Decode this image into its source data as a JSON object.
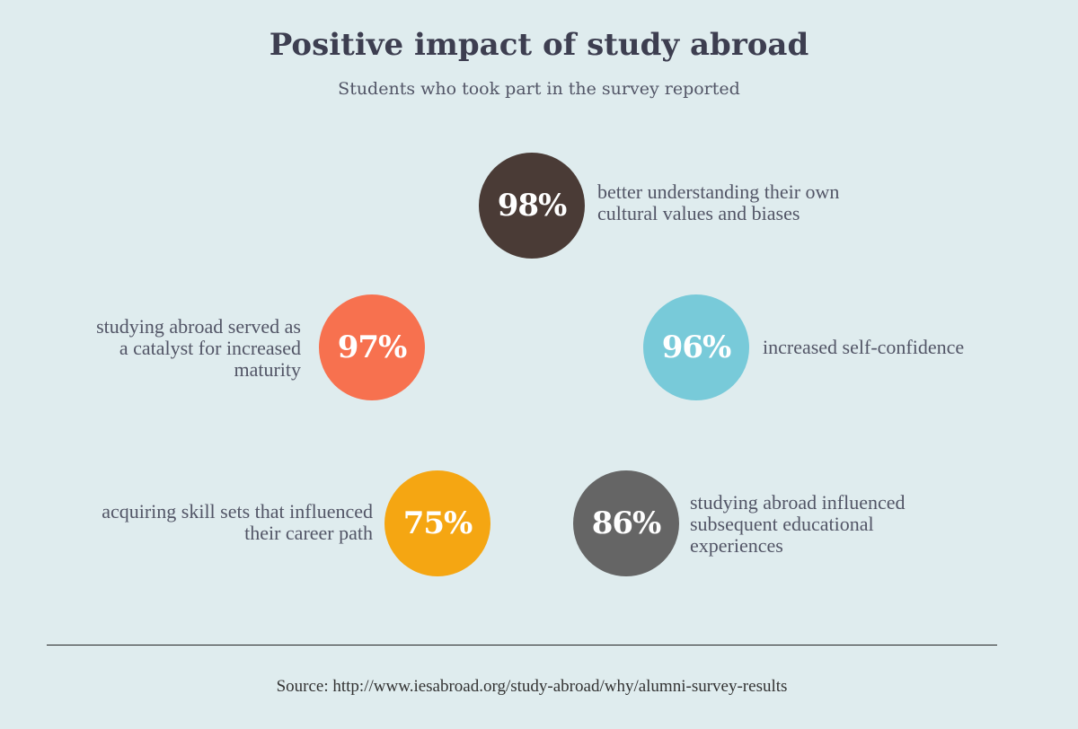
{
  "title": "Positive impact of study abroad",
  "subtitle": "Students who took part in the survey reported",
  "chart_data": {
    "type": "bubble-infographic",
    "title": "Positive impact of study abroad",
    "subtitle": "Students who took part in the survey reported",
    "items": [
      {
        "value": "98%",
        "percent": 98,
        "label": "better understanding their own\ncultural values and biases",
        "color": "#4a3b36"
      },
      {
        "value": "97%",
        "percent": 97,
        "label": "studying abroad served as\na catalyst for increased\nmaturity",
        "color": "#f7714f"
      },
      {
        "value": "96%",
        "percent": 96,
        "label": "increased self-confidence",
        "color": "#78cad9"
      },
      {
        "value": "75%",
        "percent": 75,
        "label": "acquiring skill sets that influenced\ntheir career path",
        "color": "#f5a612"
      },
      {
        "value": "86%",
        "percent": 86,
        "label": "studying abroad influenced\nsubsequent educational\nexperiences",
        "color": "#656565"
      }
    ]
  },
  "source": "Source: http://www.iesabroad.org/study-abroad/why/alumni-survey-results"
}
